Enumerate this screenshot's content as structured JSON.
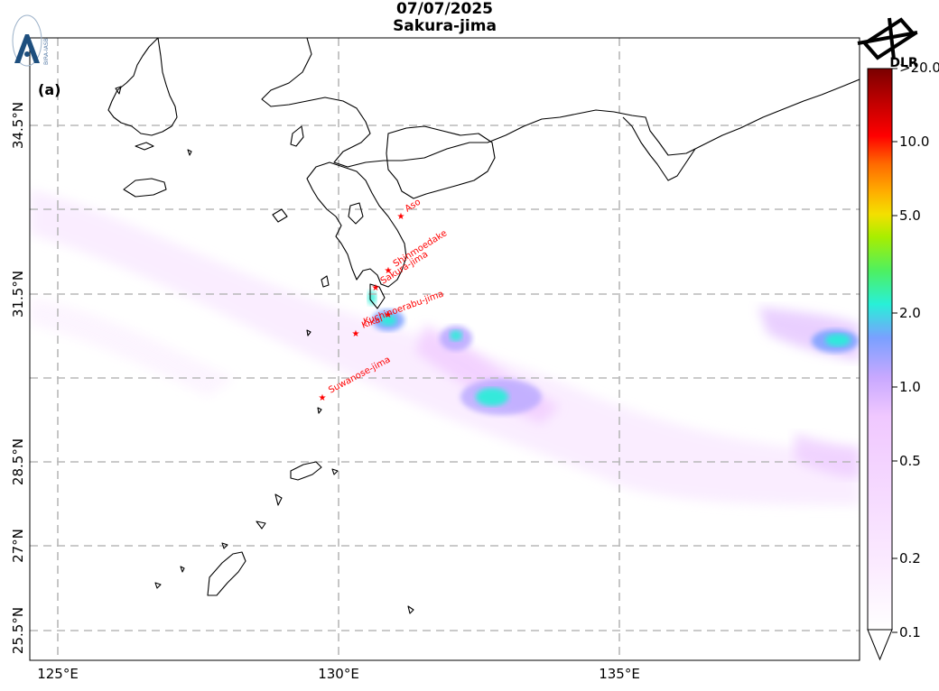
{
  "header": {
    "date": "07/07/2025",
    "volcano": "Sakura-jima",
    "panel_label": "(a)"
  },
  "logos": {
    "left": "BIRA-IASB",
    "right": "DLR"
  },
  "axes": {
    "lon_labels": [
      "125°E",
      "130°E",
      "135°E"
    ],
    "lat_labels": [
      "34.5°N",
      "31.5°N",
      "28.5°N",
      "27°N",
      "25.5°N"
    ]
  },
  "volcanoes": [
    {
      "name": "Aso"
    },
    {
      "name": "Shinmoedake"
    },
    {
      "name": "Sakura-jima"
    },
    {
      "name": "Kikai"
    },
    {
      "name": "Kuchinoerabu-jima"
    },
    {
      "name": "Suwanose-jima"
    }
  ],
  "colorbar": {
    "max_label": ">20.0",
    "ticks": [
      "10.0",
      "5.0",
      "2.0",
      "1.0",
      "0.5",
      "0.2",
      "0.1"
    ],
    "colors": [
      "#7a0000",
      "#c00000",
      "#ff0000",
      "#ff6a00",
      "#ffae00",
      "#f3e000",
      "#a8ee00",
      "#4ef060",
      "#28f0d8",
      "#7aa0ff",
      "#c8a8ff",
      "#f0c8ff",
      "#fbeaff",
      "#ffffff"
    ]
  }
}
